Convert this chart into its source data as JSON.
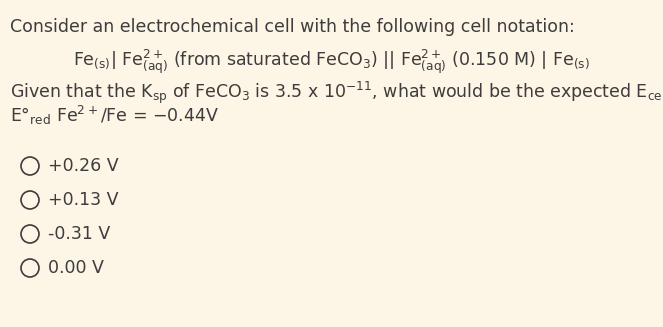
{
  "bg_color": "#fdf5e6",
  "text_color": "#3d3d3d",
  "options": [
    "+0.26 V",
    "+0.13 V",
    "-0.31 V",
    "0.00 V"
  ],
  "font_size_main": 12.5,
  "font_size_options": 12.5
}
